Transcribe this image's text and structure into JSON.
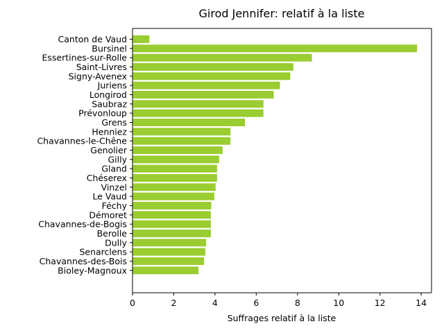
{
  "chart_data": {
    "type": "bar",
    "orientation": "horizontal",
    "title": "Girod Jennifer: relatif à la liste",
    "xlabel": "Suffrages relatif à la liste",
    "ylabel": "",
    "xlim": [
      0,
      14.5
    ],
    "xticks": [
      0,
      2,
      4,
      6,
      8,
      10,
      12,
      14
    ],
    "bar_color": "#9acd32",
    "grid": false,
    "categories": [
      "Canton de Vaud",
      "Bursinel",
      "Essertines-sur-Rolle",
      "Saint-Livres",
      "Signy-Avenex",
      "Juriens",
      "Longirod",
      "Saubraz",
      "Prévonloup",
      "Grens",
      "Henniez",
      "Chavannes-le-Chêne",
      "Genolier",
      "Gilly",
      "Gland",
      "Chéserex",
      "Vinzel",
      "Le Vaud",
      "Féchy",
      "Démoret",
      "Chavannes-de-Bogis",
      "Berolle",
      "Dully",
      "Senarclens",
      "Chavannes-des-Bois",
      "Bioley-Magnoux"
    ],
    "values": [
      0.82,
      13.8,
      8.7,
      7.8,
      7.65,
      7.15,
      6.85,
      6.35,
      6.35,
      5.45,
      4.75,
      4.75,
      4.37,
      4.2,
      4.1,
      4.1,
      4.03,
      3.97,
      3.82,
      3.8,
      3.8,
      3.8,
      3.57,
      3.53,
      3.47,
      3.2
    ]
  }
}
